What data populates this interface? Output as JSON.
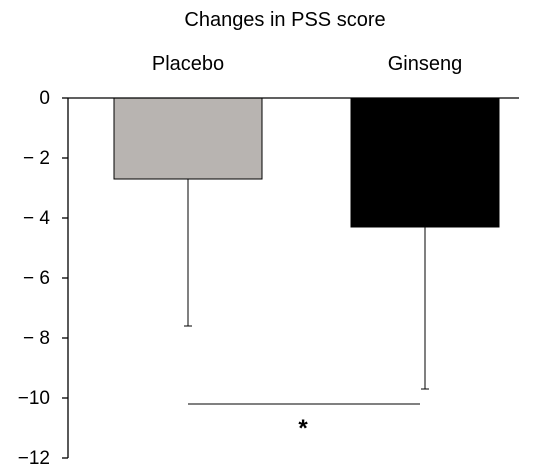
{
  "chart_data": {
    "type": "bar",
    "title": "Changes in PSS score",
    "xlabel": "",
    "ylabel": "",
    "categories": [
      "Placebo",
      "Ginseng"
    ],
    "values": [
      -2.7,
      -4.3
    ],
    "error_bars": [
      4.9,
      5.4
    ],
    "bar_colors": [
      "#b8b4b1",
      "#000000"
    ],
    "ylim": [
      -12,
      0
    ],
    "yticks": [
      0,
      -2,
      -4,
      -6,
      -8,
      -10,
      -12
    ],
    "ytick_labels": [
      "0",
      "− 2",
      "− 4",
      "− 6",
      "− 8",
      "−10",
      "−12"
    ],
    "grid": false,
    "legend": "none",
    "significance": {
      "between": [
        "Placebo",
        "Ginseng"
      ],
      "y": -10.2,
      "label": "*"
    }
  }
}
